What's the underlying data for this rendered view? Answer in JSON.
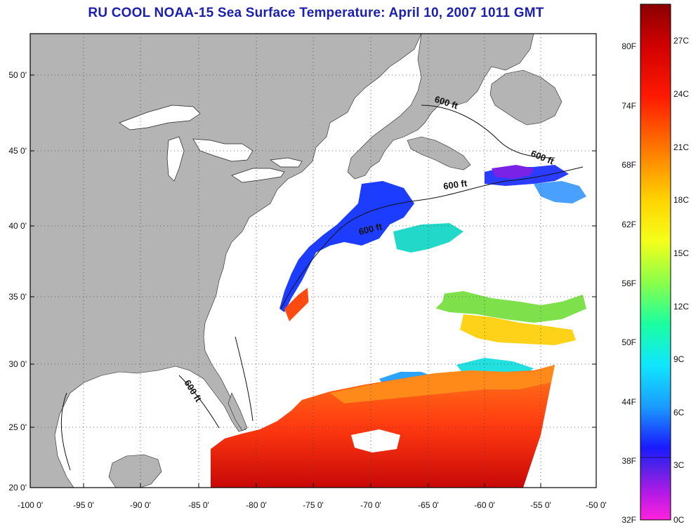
{
  "title": "RU COOL  NOAA-15  Sea Surface Temperature:  April 10, 2007 1011 GMT",
  "map": {
    "lon_labels": [
      "-100 0'",
      "-95 0'",
      "-90 0'",
      "-85 0'",
      "-80 0'",
      "-75 0'",
      "-70 0'",
      "-65 0'",
      "-60 0'",
      "-55 0'",
      "-50 0'"
    ],
    "lat_labels": [
      "50 0'",
      "45 0'",
      "40 0'",
      "35 0'",
      "30 0'",
      "25 0'",
      "20 0'"
    ],
    "depth_contour_label": "600 ft",
    "colors": {
      "land": "#b4b4b4",
      "cloud": "#ffffff",
      "water_cold": "#1c32ff",
      "water_warm": "#e01a0a"
    }
  },
  "colorbar": {
    "fahrenheit": [
      "80F",
      "74F",
      "68F",
      "62F",
      "56F",
      "50F",
      "44F",
      "38F",
      "32F"
    ],
    "celsius": [
      "27C",
      "24C",
      "21C",
      "18C",
      "15C",
      "12C",
      "9C",
      "6C",
      "3C",
      "0C"
    ]
  }
}
